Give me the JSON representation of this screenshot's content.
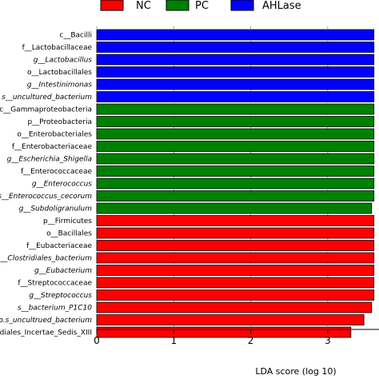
{
  "chart_data": {
    "type": "bar",
    "orientation": "horizontal",
    "xlabel": "LDA score  (log 10)",
    "xlim": [
      0,
      3.3
    ],
    "xticks": [
      0,
      1,
      2,
      3
    ],
    "grid": "x-only, dashed",
    "legend_placement": "top",
    "groups": [
      {
        "name": "NC",
        "color": "#ff0000"
      },
      {
        "name": "PC",
        "color": "#008000"
      },
      {
        "name": "AHLase",
        "color": "#0000ff"
      }
    ],
    "bars": [
      {
        "label": "c__Bacilli",
        "value": 3.6,
        "group": "AHLase",
        "italic": false
      },
      {
        "label": "f__Lactobacillaceae",
        "value": 3.6,
        "group": "AHLase",
        "italic": false
      },
      {
        "label": "g__Lactobacillus",
        "value": 3.6,
        "group": "AHLase",
        "italic": true
      },
      {
        "label": "o__Lactobacillales",
        "value": 3.6,
        "group": "AHLase",
        "italic": false
      },
      {
        "label": "g__Intestinimonas",
        "value": 3.6,
        "group": "AHLase",
        "italic": true
      },
      {
        "label": "s__uncultured_bacterium",
        "value": 3.6,
        "group": "AHLase",
        "italic": true
      },
      {
        "label": "c__Gammaproteobacteria",
        "value": 3.6,
        "group": "PC",
        "italic": false
      },
      {
        "label": "p__Proteobacteria",
        "value": 3.6,
        "group": "PC",
        "italic": false
      },
      {
        "label": "o__Enterobacteriales",
        "value": 3.6,
        "group": "PC",
        "italic": false
      },
      {
        "label": "f__Enterobacteriaceae",
        "value": 3.6,
        "group": "PC",
        "italic": false
      },
      {
        "label": "g__Escherichia_Shigella",
        "value": 3.6,
        "group": "PC",
        "italic": true
      },
      {
        "label": "f__Enterococcaceae",
        "value": 3.6,
        "group": "PC",
        "italic": false
      },
      {
        "label": "g__Enterococcus",
        "value": 3.6,
        "group": "PC",
        "italic": true
      },
      {
        "label": "s__Enterococcus_cecorum",
        "value": 3.6,
        "group": "PC",
        "italic": true
      },
      {
        "label": "g__Subdoligranulum",
        "value": 3.57,
        "group": "PC",
        "italic": true
      },
      {
        "label": "p__Firmicutes",
        "value": 3.6,
        "group": "NC",
        "italic": false
      },
      {
        "label": "o__Bacillales",
        "value": 3.6,
        "group": "NC",
        "italic": false
      },
      {
        "label": "f__Eubacteriaceae",
        "value": 3.6,
        "group": "NC",
        "italic": false
      },
      {
        "label": "s__Clostridiales_bacterium",
        "value": 3.6,
        "group": "NC",
        "italic": true
      },
      {
        "label": "g__Eubacterium",
        "value": 3.6,
        "group": "NC",
        "italic": true
      },
      {
        "label": "f__Streptococcaceae",
        "value": 3.6,
        "group": "NC",
        "italic": false
      },
      {
        "label": "g__Streptococcus",
        "value": 3.6,
        "group": "NC",
        "italic": true
      },
      {
        "label": "s__bacterium_P1C10",
        "value": 3.57,
        "group": "NC",
        "italic": true
      },
      {
        "label": "s__Oscillibacter_sp.s_uncultrued_bacterium",
        "value": 3.47,
        "group": "NC",
        "italic": true
      },
      {
        "label": "f__Clostridiales_Incertae_Sedis_XIII",
        "value": 3.3,
        "group": "NC",
        "italic": false
      }
    ]
  }
}
